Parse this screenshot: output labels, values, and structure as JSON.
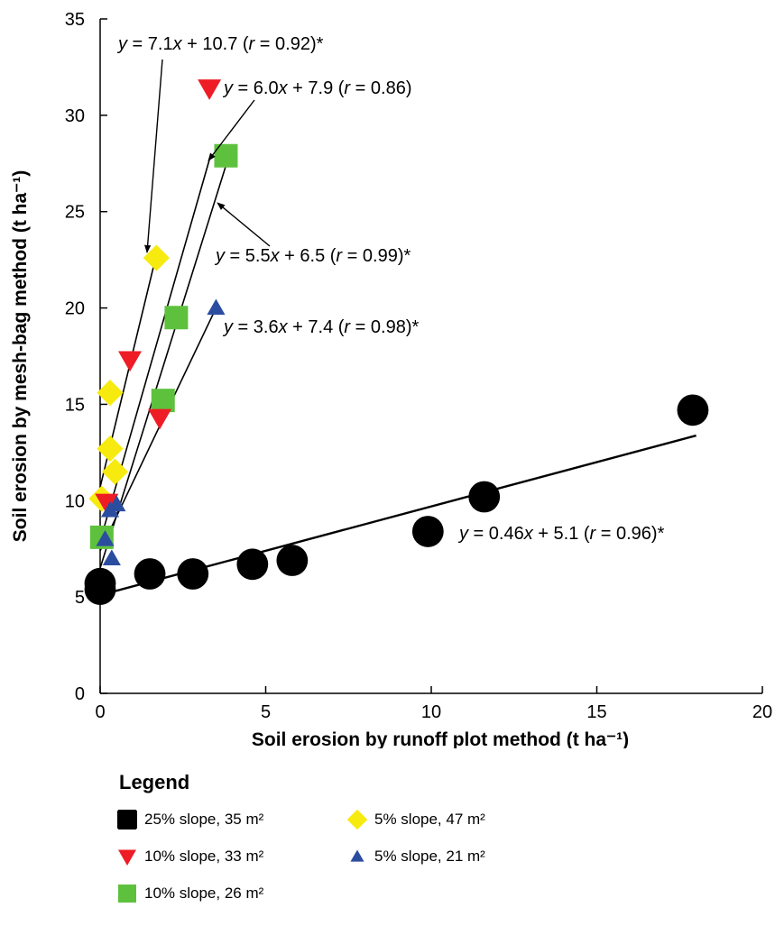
{
  "chart_data": {
    "type": "scatter",
    "xlabel": "Soil erosion by runoff plot method (t ha⁻¹)",
    "ylabel": "Soil erosion by mesh-bag method (t ha⁻¹)",
    "xlim": [
      0,
      20
    ],
    "ylim": [
      0,
      35
    ],
    "xticks": [
      0,
      5,
      10,
      15,
      20
    ],
    "yticks": [
      0,
      5,
      10,
      15,
      20,
      25,
      30,
      35
    ],
    "grid": false,
    "legend_title": "Legend",
    "legend_position": "bottom",
    "series": [
      {
        "name": "25% slope, 35 m²",
        "marker": "circle",
        "color": "#000000",
        "points": [
          [
            0.0,
            5.4
          ],
          [
            0.0,
            5.7
          ],
          [
            1.5,
            6.2
          ],
          [
            2.8,
            6.2
          ],
          [
            4.6,
            6.7
          ],
          [
            5.8,
            6.9
          ],
          [
            9.9,
            8.4
          ],
          [
            11.6,
            10.2
          ],
          [
            17.9,
            14.7
          ]
        ],
        "fit": {
          "slope": 0.46,
          "intercept": 5.1,
          "x_range": [
            0,
            18
          ]
        },
        "equation": {
          "lead": "y",
          "body": " = 0.46",
          "var": "x",
          "const": " + 5.1 (",
          "r": "r",
          "tail": " = 0.96)*"
        }
      },
      {
        "name": "10% slope, 33 m²",
        "marker": "triangle-down",
        "color": "#ee1c25",
        "points": [
          [
            0.2,
            9.9
          ],
          [
            0.9,
            17.3
          ],
          [
            1.8,
            14.3
          ],
          [
            3.3,
            31.4
          ]
        ],
        "fit": {
          "slope": 6.0,
          "intercept": 7.9,
          "x_range": [
            0,
            3.3
          ]
        },
        "equation": {
          "lead": "y",
          "body": " = 6.0",
          "var": "x",
          "const": " + 7.9 (",
          "r": "r",
          "tail": " = 0.86)"
        }
      },
      {
        "name": "10% slope, 26 m²",
        "marker": "square",
        "color": "#5ec13e",
        "points": [
          [
            0.05,
            8.1
          ],
          [
            1.9,
            15.2
          ],
          [
            2.3,
            19.5
          ],
          [
            3.8,
            27.9
          ]
        ],
        "fit": {
          "slope": 5.5,
          "intercept": 6.5,
          "x_range": [
            0,
            3.9
          ]
        },
        "equation": {
          "lead": "y",
          "body": " = 5.5",
          "var": "x",
          "const": " + 6.5 (",
          "r": "r",
          "tail": " = 0.99)*"
        }
      },
      {
        "name": "5% slope, 47 m²",
        "marker": "diamond",
        "color": "#f7ea0f",
        "points": [
          [
            0.05,
            10.1
          ],
          [
            0.3,
            12.7
          ],
          [
            0.3,
            15.6
          ],
          [
            0.45,
            11.5
          ],
          [
            1.7,
            22.6
          ]
        ],
        "fit": {
          "slope": 7.1,
          "intercept": 10.7,
          "x_range": [
            0,
            1.7
          ]
        },
        "equation": {
          "lead": "y",
          "body": " = 7.1",
          "var": "x",
          "const": " + 10.7 (",
          "r": "r",
          "tail": " = 0.92)*"
        }
      },
      {
        "name": "5% slope, 21 m²",
        "marker": "triangle-up",
        "color": "#2b4da0",
        "points": [
          [
            0.15,
            8.0
          ],
          [
            0.3,
            9.5
          ],
          [
            0.35,
            7.0
          ],
          [
            0.5,
            9.8
          ],
          [
            3.5,
            20.0
          ]
        ],
        "fit": {
          "slope": 3.6,
          "intercept": 7.4,
          "x_range": [
            0,
            3.5
          ]
        },
        "equation": {
          "lead": "y",
          "body": " = 3.6",
          "var": "x",
          "const": " + 7.4 (",
          "r": "r",
          "tail": " = 0.98)*"
        }
      }
    ]
  }
}
